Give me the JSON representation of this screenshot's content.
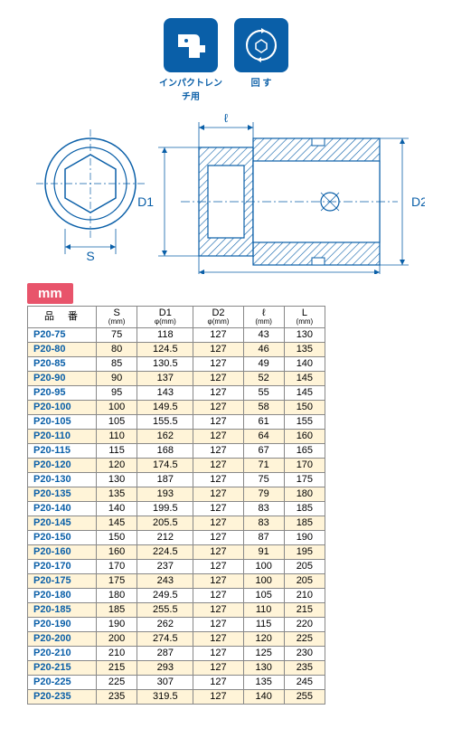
{
  "icons": {
    "impact": {
      "label": "インパクトレンチ用"
    },
    "turn": {
      "label": "回 す"
    }
  },
  "diagram": {
    "labels": {
      "S": "S",
      "D1": "D1",
      "D2": "D2",
      "L": "L",
      "l": "ℓ"
    }
  },
  "unit_tag": "mm",
  "table": {
    "headers": {
      "part": "品 番",
      "S": "S",
      "S_sub": "(mm)",
      "D1": "D1",
      "D1_sub": "φ(mm)",
      "D2": "D2",
      "D2_sub": "φ(mm)",
      "l": "ℓ",
      "l_sub": "(mm)",
      "L": "L",
      "L_sub": "(mm)"
    },
    "rows": [
      {
        "part": "P20-75",
        "S": 75,
        "D1": 118,
        "D2": 127,
        "l": 43,
        "L": 130
      },
      {
        "part": "P20-80",
        "S": 80,
        "D1": 124.5,
        "D2": 127,
        "l": 46,
        "L": 135
      },
      {
        "part": "P20-85",
        "S": 85,
        "D1": 130.5,
        "D2": 127,
        "l": 49,
        "L": 140
      },
      {
        "part": "P20-90",
        "S": 90,
        "D1": 137,
        "D2": 127,
        "l": 52,
        "L": 145
      },
      {
        "part": "P20-95",
        "S": 95,
        "D1": 143,
        "D2": 127,
        "l": 55,
        "L": 145
      },
      {
        "part": "P20-100",
        "S": 100,
        "D1": 149.5,
        "D2": 127,
        "l": 58,
        "L": 150
      },
      {
        "part": "P20-105",
        "S": 105,
        "D1": 155.5,
        "D2": 127,
        "l": 61,
        "L": 155
      },
      {
        "part": "P20-110",
        "S": 110,
        "D1": 162,
        "D2": 127,
        "l": 64,
        "L": 160
      },
      {
        "part": "P20-115",
        "S": 115,
        "D1": 168,
        "D2": 127,
        "l": 67,
        "L": 165
      },
      {
        "part": "P20-120",
        "S": 120,
        "D1": 174.5,
        "D2": 127,
        "l": 71,
        "L": 170
      },
      {
        "part": "P20-130",
        "S": 130,
        "D1": 187,
        "D2": 127,
        "l": 75,
        "L": 175
      },
      {
        "part": "P20-135",
        "S": 135,
        "D1": 193,
        "D2": 127,
        "l": 79,
        "L": 180
      },
      {
        "part": "P20-140",
        "S": 140,
        "D1": 199.5,
        "D2": 127,
        "l": 83,
        "L": 185
      },
      {
        "part": "P20-145",
        "S": 145,
        "D1": 205.5,
        "D2": 127,
        "l": 83,
        "L": 185
      },
      {
        "part": "P20-150",
        "S": 150,
        "D1": 212,
        "D2": 127,
        "l": 87,
        "L": 190
      },
      {
        "part": "P20-160",
        "S": 160,
        "D1": 224.5,
        "D2": 127,
        "l": 91,
        "L": 195
      },
      {
        "part": "P20-170",
        "S": 170,
        "D1": 237,
        "D2": 127,
        "l": 100,
        "L": 205
      },
      {
        "part": "P20-175",
        "S": 175,
        "D1": 243,
        "D2": 127,
        "l": 100,
        "L": 205
      },
      {
        "part": "P20-180",
        "S": 180,
        "D1": 249.5,
        "D2": 127,
        "l": 105,
        "L": 210
      },
      {
        "part": "P20-185",
        "S": 185,
        "D1": 255.5,
        "D2": 127,
        "l": 110,
        "L": 215
      },
      {
        "part": "P20-190",
        "S": 190,
        "D1": 262,
        "D2": 127,
        "l": 115,
        "L": 220
      },
      {
        "part": "P20-200",
        "S": 200,
        "D1": 274.5,
        "D2": 127,
        "l": 120,
        "L": 225
      },
      {
        "part": "P20-210",
        "S": 210,
        "D1": 287,
        "D2": 127,
        "l": 125,
        "L": 230
      },
      {
        "part": "P20-215",
        "S": 215,
        "D1": 293,
        "D2": 127,
        "l": 130,
        "L": 235
      },
      {
        "part": "P20-225",
        "S": 225,
        "D1": 307,
        "D2": 127,
        "l": 135,
        "L": 245
      },
      {
        "part": "P20-235",
        "S": 235,
        "D1": 319.5,
        "D2": 127,
        "l": 140,
        "L": 255
      }
    ]
  },
  "styling": {
    "brand_blue": "#0a5fa8",
    "tag_red": "#e8546b",
    "alt_row_bg": "#fff4d8",
    "border": "#888888"
  }
}
